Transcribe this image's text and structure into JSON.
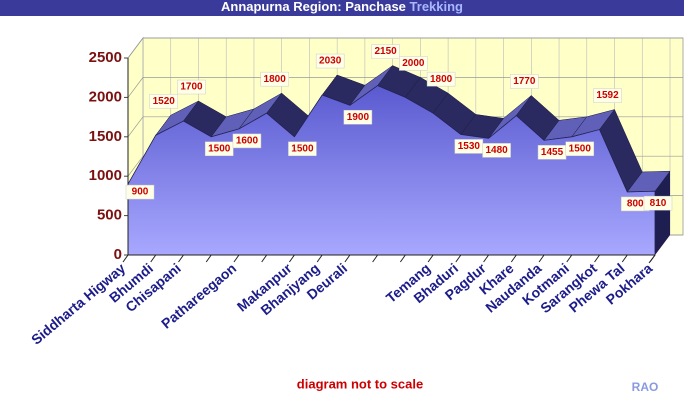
{
  "chart_data": {
    "type": "area",
    "title": "Annapurna Region: Panchase",
    "title_highlight": "Trekking",
    "categories": [
      "Siddharta Higway",
      "Bhumdi",
      "Chisapani",
      null,
      "Pathareegaon",
      null,
      "Makanpur",
      "Bhanjyang",
      "Deurali",
      null,
      null,
      "Temang",
      "Bhaduri",
      "Pagdur",
      "Khare",
      "Naudanda",
      "Kotmani",
      "Sarangkot",
      "Phewa Tal",
      "Pokhara"
    ],
    "values": [
      900,
      1520,
      1700,
      1500,
      1600,
      1800,
      1500,
      2030,
      1900,
      2150,
      2000,
      1800,
      1530,
      1480,
      1770,
      1455,
      1500,
      1592,
      800,
      810
    ],
    "ylim": [
      0,
      2500
    ],
    "yticks": [
      0,
      500,
      1000,
      1500,
      2000,
      2500
    ],
    "grid": true,
    "color": "#8f8ff0",
    "note": "diagram not to scale",
    "credit": "RAO"
  }
}
